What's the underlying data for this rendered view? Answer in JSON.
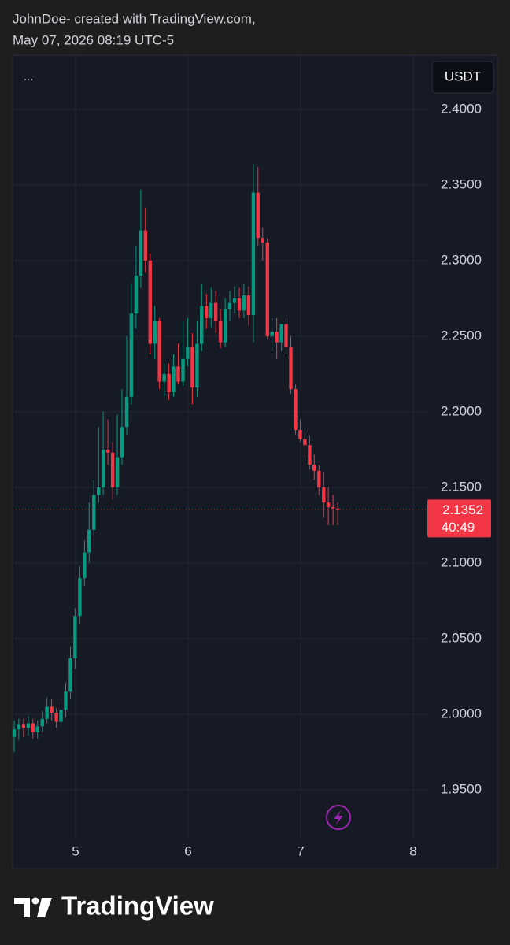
{
  "header": {
    "line1": "JohnDoe- created with TradingView.com,",
    "line2": "May 07, 2026 08:19 UTC-5"
  },
  "menu": "...",
  "currency": "USDT",
  "footer": {
    "brand": "TradingView"
  },
  "chart_data": {
    "type": "candlestick",
    "x": [
      4.455,
      4.496,
      4.538,
      4.58,
      4.621,
      4.663,
      4.705,
      4.746,
      4.788,
      4.83,
      4.871,
      4.913,
      4.955,
      4.996,
      5.038,
      5.08,
      5.121,
      5.163,
      5.205,
      5.246,
      5.288,
      5.33,
      5.371,
      5.413,
      5.455,
      5.496,
      5.538,
      5.58,
      5.621,
      5.663,
      5.705,
      5.746,
      5.788,
      5.83,
      5.871,
      5.913,
      5.955,
      5.996,
      6.038,
      6.08,
      6.121,
      6.163,
      6.205,
      6.246,
      6.288,
      6.33,
      6.371,
      6.413,
      6.455,
      6.496,
      6.538,
      6.58,
      6.621,
      6.663,
      6.705,
      6.746,
      6.788,
      6.83,
      6.871,
      6.913,
      6.955,
      6.996,
      7.038,
      7.08,
      7.121,
      7.163,
      7.205,
      7.246,
      7.288,
      7.33
    ],
    "open": [
      1.985,
      1.99,
      1.993,
      1.991,
      1.994,
      1.988,
      1.992,
      1.997,
      2.005,
      2.001,
      1.995,
      2.003,
      2.015,
      2.037,
      2.065,
      2.09,
      2.107,
      2.122,
      2.145,
      2.15,
      2.175,
      2.173,
      2.15,
      2.17,
      2.19,
      2.21,
      2.265,
      2.29,
      2.32,
      2.3,
      2.245,
      2.26,
      2.22,
      2.225,
      2.213,
      2.23,
      2.22,
      2.235,
      2.243,
      2.216,
      2.245,
      2.27,
      2.262,
      2.272,
      2.26,
      2.246,
      2.268,
      2.272,
      2.275,
      2.267,
      2.277,
      2.264,
      2.345,
      2.315,
      2.312,
      2.25,
      2.253,
      2.246,
      2.258,
      2.243,
      2.215,
      2.188,
      2.182,
      2.178,
      2.165,
      2.161,
      2.15,
      2.14,
      2.137,
      2.136
    ],
    "high": [
      1.996,
      1.997,
      1.997,
      1.999,
      1.997,
      1.996,
      2.002,
      2.011,
      2.01,
      2.004,
      2.008,
      2.021,
      2.045,
      2.07,
      2.098,
      2.115,
      2.14,
      2.155,
      2.19,
      2.2,
      2.195,
      2.18,
      2.198,
      2.215,
      2.25,
      2.285,
      2.31,
      2.347,
      2.335,
      2.305,
      2.27,
      2.262,
      2.232,
      2.232,
      2.238,
      2.245,
      2.26,
      2.262,
      2.252,
      2.26,
      2.285,
      2.278,
      2.282,
      2.28,
      2.268,
      2.275,
      2.28,
      2.283,
      2.282,
      2.285,
      2.283,
      2.364,
      2.362,
      2.322,
      2.315,
      2.262,
      2.262,
      2.258,
      2.262,
      2.25,
      2.218,
      2.195,
      2.186,
      2.184,
      2.172,
      2.165,
      2.16,
      2.15,
      2.145,
      2.14
    ],
    "low": [
      1.975,
      1.983,
      1.985,
      1.986,
      1.984,
      1.984,
      1.988,
      1.994,
      1.996,
      1.991,
      1.993,
      1.998,
      2.01,
      2.03,
      2.06,
      2.085,
      2.1,
      2.118,
      2.14,
      2.145,
      2.165,
      2.142,
      2.145,
      2.165,
      2.185,
      2.205,
      2.255,
      2.282,
      2.292,
      2.238,
      2.235,
      2.215,
      2.21,
      2.208,
      2.21,
      2.218,
      2.217,
      2.23,
      2.205,
      2.21,
      2.24,
      2.255,
      2.256,
      2.252,
      2.242,
      2.243,
      2.26,
      2.265,
      2.262,
      2.262,
      2.257,
      2.246,
      2.31,
      2.3,
      2.248,
      2.24,
      2.235,
      2.24,
      2.238,
      2.212,
      2.185,
      2.18,
      2.17,
      2.162,
      2.155,
      2.145,
      2.13,
      2.125,
      2.125,
      2.125
    ],
    "close": [
      1.99,
      1.993,
      1.991,
      1.994,
      1.988,
      1.992,
      1.997,
      2.005,
      2.001,
      1.995,
      2.003,
      2.015,
      2.037,
      2.065,
      2.09,
      2.107,
      2.122,
      2.145,
      2.15,
      2.175,
      2.173,
      2.15,
      2.17,
      2.19,
      2.21,
      2.265,
      2.29,
      2.32,
      2.3,
      2.245,
      2.26,
      2.22,
      2.225,
      2.213,
      2.23,
      2.22,
      2.235,
      2.243,
      2.216,
      2.245,
      2.27,
      2.262,
      2.272,
      2.26,
      2.246,
      2.268,
      2.272,
      2.275,
      2.267,
      2.277,
      2.264,
      2.345,
      2.315,
      2.312,
      2.25,
      2.253,
      2.246,
      2.258,
      2.243,
      2.215,
      2.188,
      2.182,
      2.178,
      2.165,
      2.161,
      2.15,
      2.14,
      2.137,
      2.136,
      2.135
    ],
    "up_color": "#089981",
    "down_color": "#f23645",
    "xlim": [
      4.441,
      8.14
    ],
    "xticks": [
      5,
      6,
      7,
      8
    ],
    "ylim": [
      1.9177,
      2.4359
    ],
    "yticks": [
      {
        "value": 1.95,
        "label": "1.9500"
      },
      {
        "value": 2.0,
        "label": "2.0000"
      },
      {
        "value": 2.05,
        "label": "2.0500"
      },
      {
        "value": 2.1,
        "label": "2.1000"
      },
      {
        "value": 2.15,
        "label": "2.1500"
      },
      {
        "value": 2.2,
        "label": "2.2000"
      },
      {
        "value": 2.25,
        "label": "2.2500"
      },
      {
        "value": 2.3,
        "label": "2.3000"
      },
      {
        "value": 2.35,
        "label": "2.3500"
      },
      {
        "value": 2.4,
        "label": "2.4000"
      }
    ],
    "grid": true,
    "last_price": 2.1352,
    "countdown": "40:49"
  }
}
